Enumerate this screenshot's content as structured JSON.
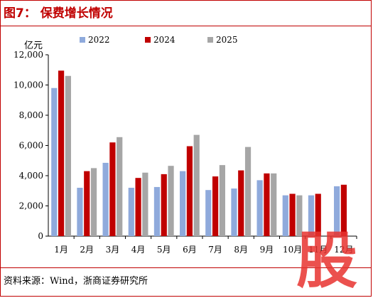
{
  "title": "图7： 保费增长情况",
  "source": "资料来源：Wind，浙商证券研究所",
  "watermark_text": "股",
  "colors": {
    "accent": "#c00000",
    "series2022": "#8faadc",
    "series2024": "#c00000",
    "series2025": "#a6a6a6"
  },
  "chart_data": {
    "type": "bar",
    "unit_label": "亿元",
    "ylim": [
      0,
      12000
    ],
    "yticks": [
      "0",
      "2,000",
      "4,000",
      "6,000",
      "8,000",
      "10,000",
      "12,000"
    ],
    "categories": [
      "1月",
      "2月",
      "3月",
      "4月",
      "5月",
      "6月",
      "7月",
      "8月",
      "9月",
      "10月",
      "11月",
      "12月"
    ],
    "legend_position": "top",
    "grid": false,
    "series": [
      {
        "name": "2022",
        "values": [
          9800,
          3200,
          4850,
          3200,
          3250,
          4300,
          3050,
          3150,
          3700,
          2700,
          2700,
          3300
        ]
      },
      {
        "name": "2024",
        "values": [
          10950,
          4300,
          6200,
          3850,
          4100,
          5950,
          3950,
          4350,
          4150,
          2800,
          2800,
          3400
        ]
      },
      {
        "name": "2025",
        "values": [
          10600,
          4500,
          6550,
          4200,
          4650,
          6700,
          4700,
          5900,
          4150,
          2700,
          null,
          null
        ]
      }
    ]
  }
}
